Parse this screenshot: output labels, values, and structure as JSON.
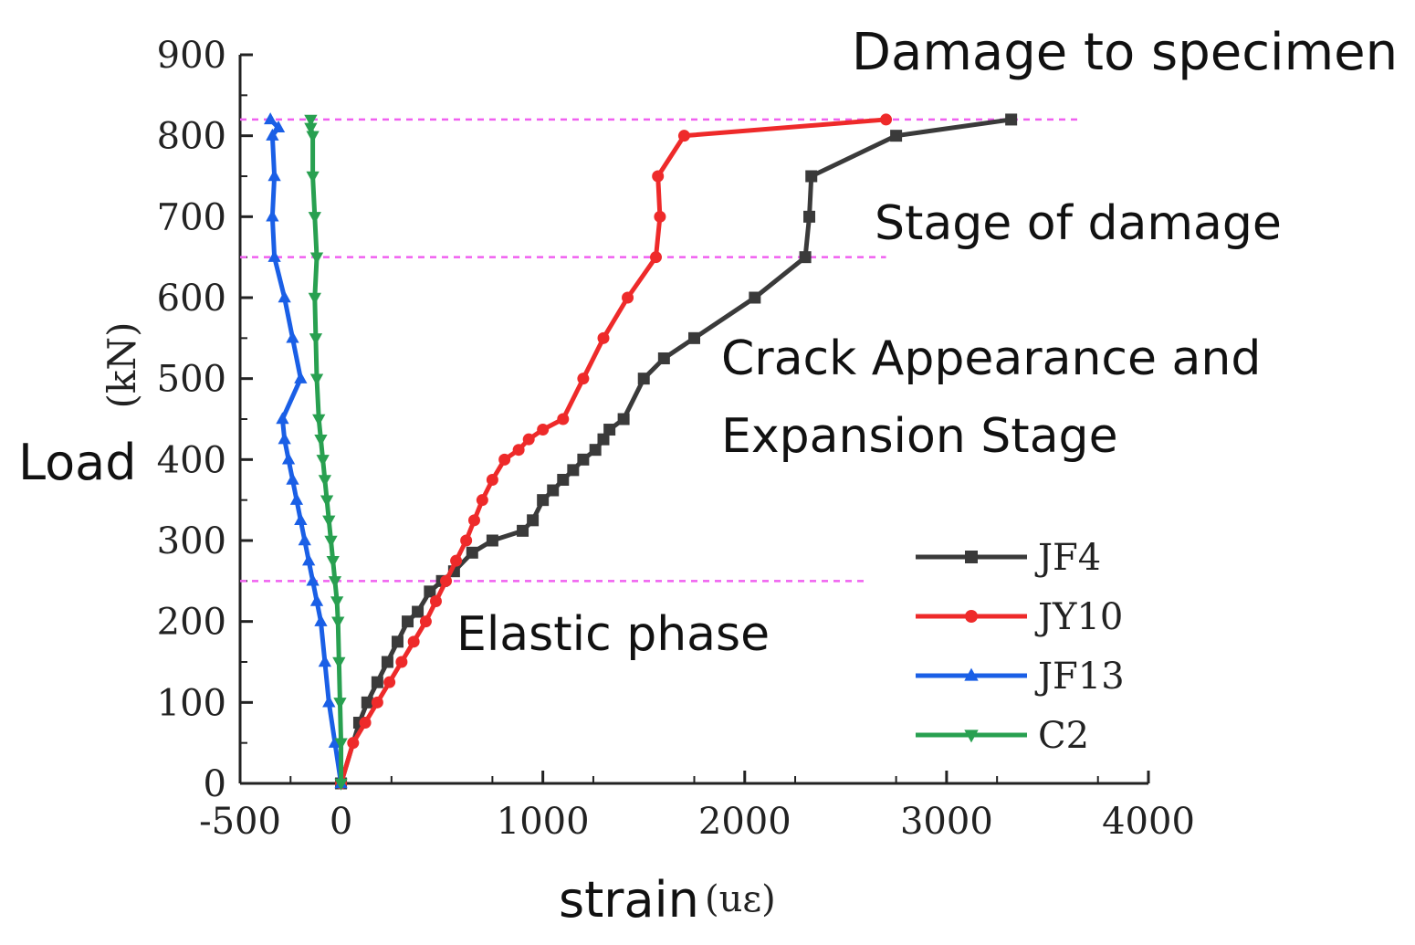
{
  "chart_data": {
    "type": "line",
    "xlabel": "strain",
    "xunit": "(uε)",
    "ylabel": "Load",
    "yunit": "(kN)",
    "xlim": [
      -500,
      4000
    ],
    "ylim": [
      0,
      900
    ],
    "xticks": [
      -500,
      0,
      1000,
      2000,
      3000,
      4000
    ],
    "yticks": [
      0,
      100,
      200,
      300,
      400,
      500,
      600,
      700,
      800,
      900
    ],
    "grid": false,
    "legend_position": "bottom-right",
    "series": [
      {
        "name": "JF4",
        "color": "#3a3a3a",
        "marker": "square",
        "x": [
          0,
          90,
          130,
          180,
          230,
          280,
          330,
          380,
          440,
          500,
          560,
          650,
          750,
          900,
          950,
          1000,
          1050,
          1100,
          1150,
          1200,
          1260,
          1300,
          1330,
          1400,
          1500,
          1600,
          1750,
          2050,
          2300,
          2320,
          2330,
          2750,
          3320
        ],
        "y": [
          0,
          75,
          100,
          125,
          150,
          175,
          200,
          212,
          237,
          250,
          262,
          285,
          300,
          312,
          325,
          350,
          362,
          375,
          387,
          400,
          412,
          425,
          437,
          450,
          500,
          525,
          550,
          600,
          650,
          700,
          750,
          800,
          820
        ]
      },
      {
        "name": "JY10",
        "color": "#ee2a2a",
        "marker": "circle",
        "x": [
          0,
          60,
          120,
          180,
          240,
          300,
          360,
          420,
          470,
          520,
          570,
          620,
          660,
          700,
          750,
          810,
          880,
          930,
          1000,
          1100,
          1200,
          1300,
          1420,
          1560,
          1580,
          1570,
          1700,
          2700
        ],
        "y": [
          0,
          50,
          75,
          100,
          125,
          150,
          175,
          200,
          225,
          250,
          275,
          300,
          325,
          350,
          375,
          400,
          412,
          425,
          437,
          450,
          500,
          550,
          600,
          650,
          700,
          750,
          800,
          820
        ]
      },
      {
        "name": "JF13",
        "color": "#1a5fe6",
        "marker": "triangle-up",
        "x": [
          0,
          -30,
          -60,
          -80,
          -100,
          -120,
          -140,
          -160,
          -180,
          -200,
          -220,
          -240,
          -260,
          -280,
          -290,
          -200,
          -240,
          -280,
          -330,
          -340,
          -330,
          -340,
          -310,
          -350
        ],
        "y": [
          0,
          50,
          100,
          150,
          200,
          225,
          250,
          275,
          300,
          325,
          350,
          375,
          400,
          425,
          450,
          500,
          550,
          600,
          650,
          700,
          750,
          800,
          810,
          820
        ]
      },
      {
        "name": "C2",
        "color": "#28a050",
        "marker": "triangle-down",
        "x": [
          0,
          0,
          -5,
          -10,
          -15,
          -20,
          -30,
          -40,
          -50,
          -60,
          -70,
          -80,
          -90,
          -100,
          -110,
          -120,
          -125,
          -130,
          -120,
          -130,
          -140,
          -140,
          -150,
          -150
        ],
        "y": [
          0,
          50,
          100,
          150,
          200,
          225,
          250,
          275,
          300,
          325,
          350,
          375,
          400,
          425,
          450,
          500,
          550,
          600,
          650,
          700,
          750,
          800,
          810,
          820
        ]
      }
    ],
    "stage_lines": [
      {
        "y": 820,
        "x_end": 3650
      },
      {
        "y": 650,
        "x_end": 2700
      },
      {
        "y": 250,
        "x_end": 2600
      }
    ],
    "stage_line_color": "#f060f0",
    "annotations": [
      {
        "text": "Damage to specimen"
      },
      {
        "text": "Stage of damage"
      },
      {
        "text": "Crack Appearance and"
      },
      {
        "text": "Expansion Stage"
      },
      {
        "text": "Elastic phase"
      }
    ]
  }
}
